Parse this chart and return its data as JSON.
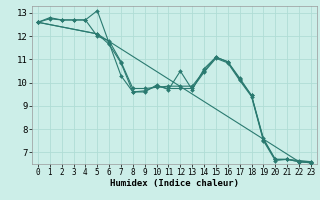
{
  "title": "",
  "xlabel": "Humidex (Indice chaleur)",
  "ylabel": "",
  "bg_color": "#cceee8",
  "line_color": "#2a7a70",
  "grid_color": "#b0ddd5",
  "xlim": [
    -0.5,
    23.5
  ],
  "ylim": [
    6.5,
    13.3
  ],
  "xticks": [
    0,
    1,
    2,
    3,
    4,
    5,
    6,
    7,
    8,
    9,
    10,
    11,
    12,
    13,
    14,
    15,
    16,
    17,
    18,
    19,
    20,
    21,
    22,
    23
  ],
  "yticks": [
    7,
    8,
    9,
    10,
    11,
    12,
    13
  ],
  "lines": [
    {
      "x": [
        0,
        1,
        2,
        3,
        4,
        5,
        6,
        7,
        8,
        9,
        10,
        11,
        12,
        13,
        14,
        15,
        16,
        17,
        18,
        19,
        20,
        21,
        22,
        23
      ],
      "y": [
        12.6,
        12.75,
        12.7,
        12.7,
        12.7,
        13.1,
        11.7,
        10.3,
        9.6,
        9.6,
        9.9,
        9.7,
        10.5,
        9.7,
        10.6,
        11.1,
        10.9,
        10.2,
        9.45,
        7.6,
        6.7,
        6.7,
        6.6,
        6.6
      ]
    },
    {
      "x": [
        0,
        1,
        2,
        3,
        4,
        5,
        6,
        7,
        8,
        9,
        10,
        11,
        12,
        13,
        14,
        15,
        16,
        17,
        18,
        19,
        20,
        21,
        22,
        23
      ],
      "y": [
        12.6,
        12.8,
        12.7,
        12.7,
        12.7,
        12.0,
        11.8,
        10.9,
        9.75,
        9.75,
        9.8,
        9.85,
        9.85,
        9.85,
        10.5,
        11.1,
        10.9,
        10.15,
        9.45,
        7.55,
        6.7,
        6.7,
        6.65,
        6.6
      ]
    },
    {
      "x": [
        0,
        5,
        6,
        7,
        8,
        9,
        10,
        11,
        12,
        13,
        14,
        15,
        16,
        17,
        18,
        19,
        20,
        21,
        22,
        23
      ],
      "y": [
        12.6,
        12.1,
        11.65,
        10.85,
        9.6,
        9.65,
        9.85,
        9.75,
        9.75,
        9.75,
        10.45,
        11.05,
        10.85,
        10.1,
        9.4,
        7.5,
        6.65,
        6.7,
        6.6,
        6.55
      ]
    },
    {
      "x": [
        0,
        5,
        22,
        23
      ],
      "y": [
        12.6,
        12.1,
        6.6,
        6.55
      ]
    }
  ]
}
